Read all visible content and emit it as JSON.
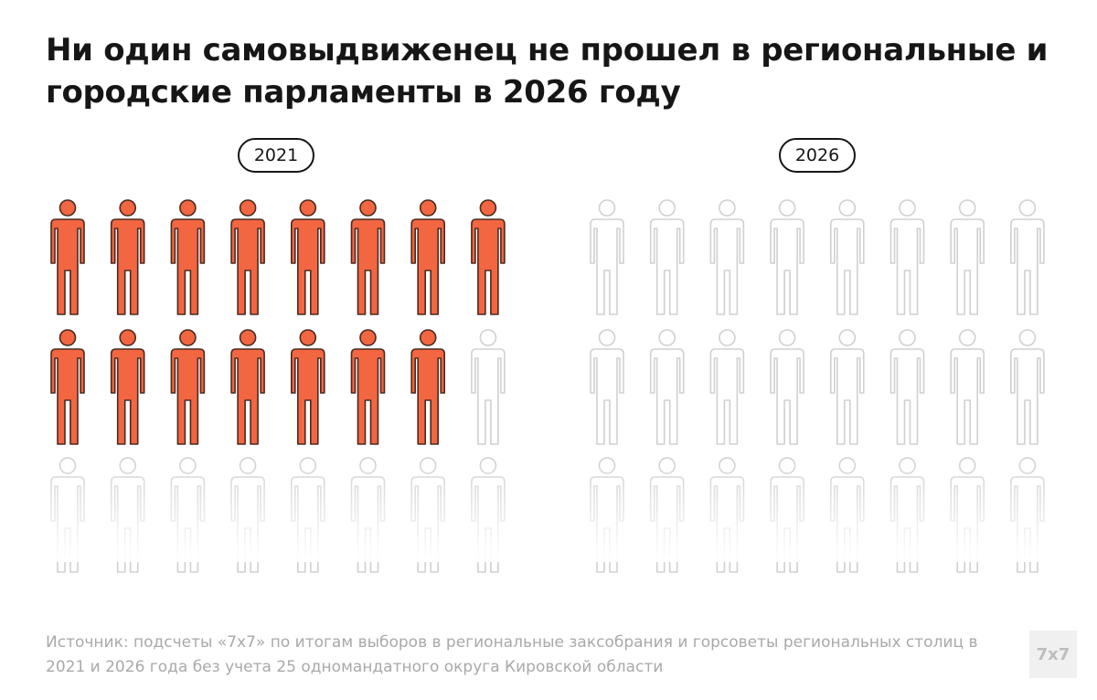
{
  "title": "Ни один самовыдвиженец не прошел в региональные и городские парламенты в 2026 году",
  "source": "Источник: подсчеты «7x7» по итогам выборов в региональные заксобрания и горсоветы региональных столиц в 2021 и 2026 года без учета 25 одномандатного округа Кировской области",
  "logo_text": "7x7",
  "colors": {
    "elected": "#f26641",
    "elected_stroke": "#4a2a20",
    "empty_stroke": "#d0d0d0",
    "text": "#161616",
    "muted": "#a9a9a9"
  },
  "chart_data": {
    "type": "pictogram",
    "icon": "person-icon",
    "series": [
      {
        "label": "2021",
        "value": 15
      },
      {
        "label": "2026",
        "value": 0
      }
    ]
  }
}
